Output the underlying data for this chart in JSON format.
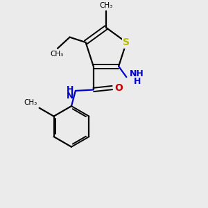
{
  "background_color": "#ebebeb",
  "bond_color": "#000000",
  "S_color": "#b8b800",
  "N_color": "#0000cc",
  "O_color": "#cc0000",
  "figsize": [
    3.0,
    3.0
  ],
  "dpi": 100,
  "xlim": [
    0,
    10
  ],
  "ylim": [
    0,
    10
  ]
}
